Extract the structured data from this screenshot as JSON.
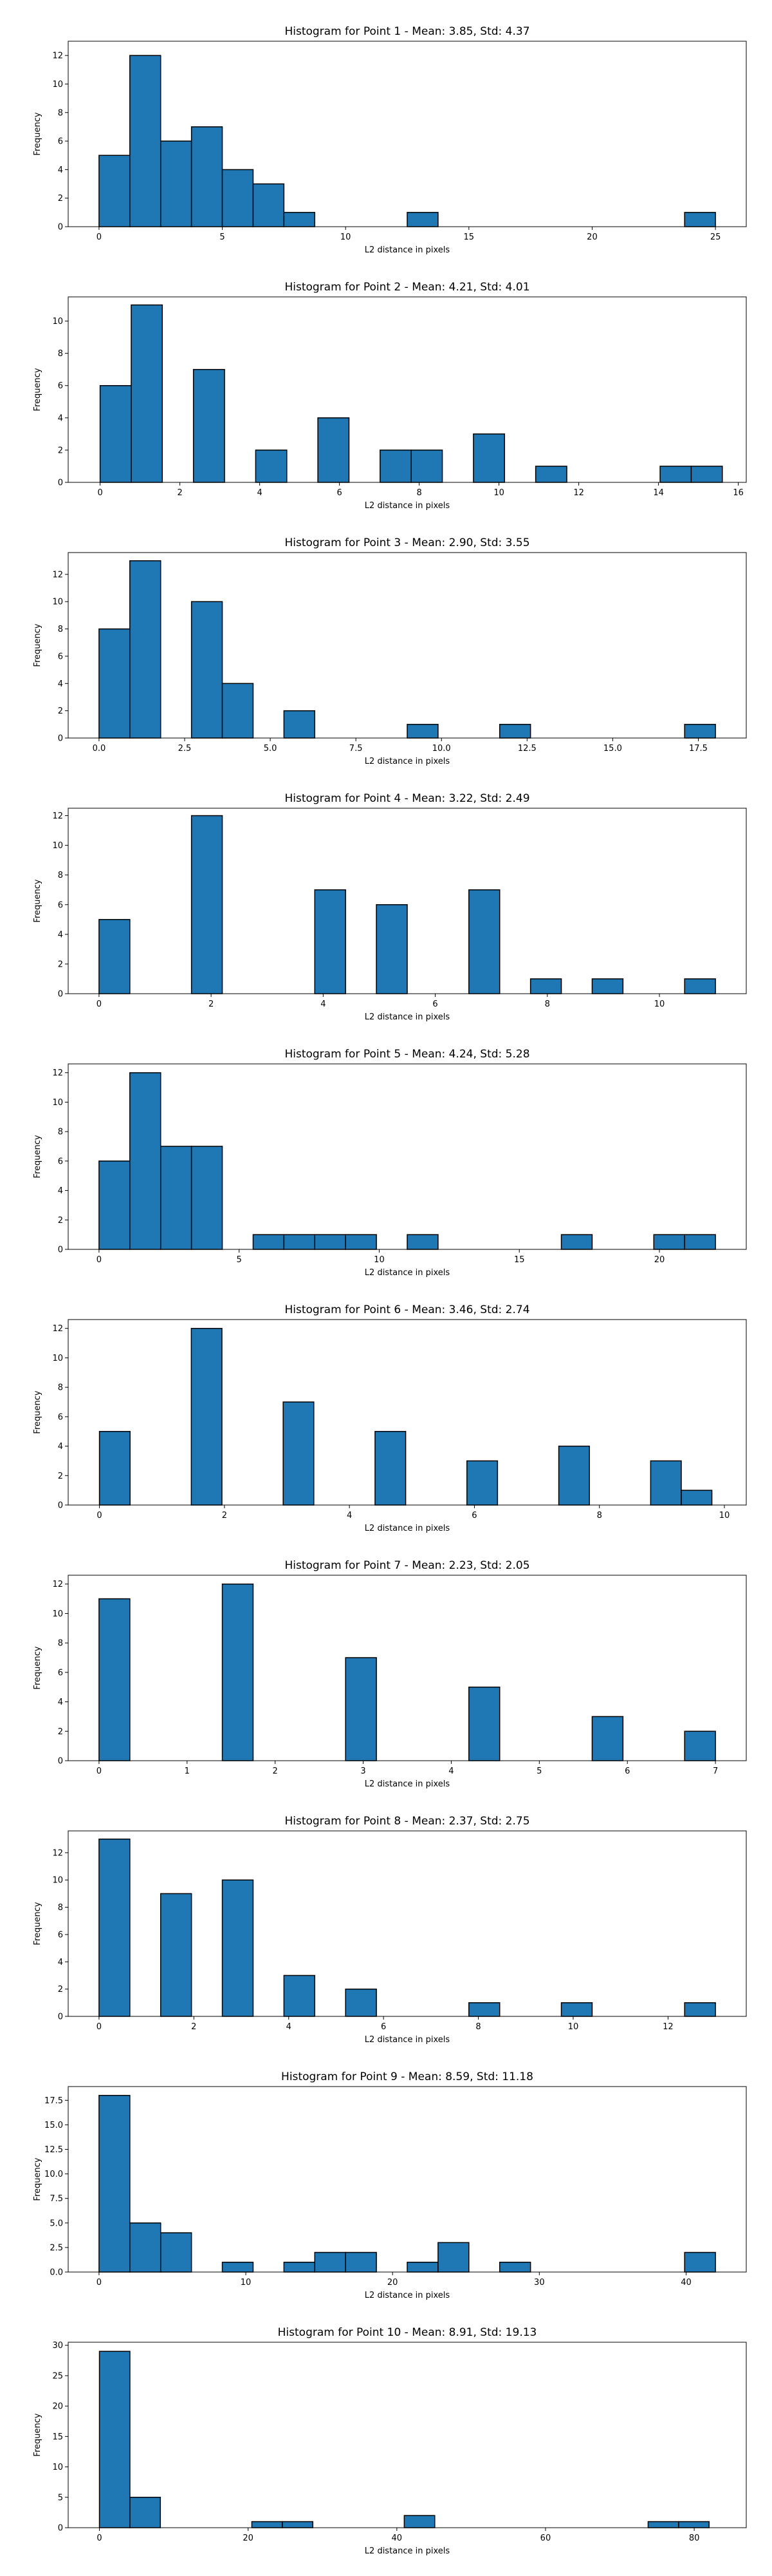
{
  "style": {
    "bar_color": "#1f77b4",
    "edge_color": "#000000"
  },
  "chart_data": [
    {
      "type": "bar",
      "title": "Histogram for Point 1 - Mean: 3.85, Std: 4.37",
      "xlabel": "L2 distance in pixels",
      "ylabel": "Frequency",
      "xlim": [
        -1.25,
        26.25
      ],
      "ylim": [
        0,
        13
      ],
      "xticks": [
        0,
        5,
        10,
        15,
        20,
        25
      ],
      "xtick_labels": [
        "0",
        "5",
        "10",
        "15",
        "20",
        "25"
      ],
      "yticks": [
        0,
        2,
        4,
        6,
        8,
        10,
        12
      ],
      "ytick_labels": [
        "0",
        "2",
        "4",
        "6",
        "8",
        "10",
        "12"
      ],
      "bin_start": 0,
      "bin_width": 1.25,
      "values": [
        5,
        12,
        6,
        7,
        4,
        3,
        1,
        0,
        0,
        0,
        1,
        0,
        0,
        0,
        0,
        0,
        0,
        0,
        0,
        1
      ]
    },
    {
      "type": "bar",
      "title": "Histogram for Point 2 - Mean: 4.21, Std: 4.01",
      "xlabel": "L2 distance in pixels",
      "ylabel": "Frequency",
      "xlim": [
        -0.8,
        16.2
      ],
      "ylim": [
        0,
        11.5
      ],
      "xticks": [
        0,
        2,
        4,
        6,
        8,
        10,
        12,
        14,
        16
      ],
      "xtick_labels": [
        "0",
        "2",
        "4",
        "6",
        "8",
        "10",
        "12",
        "14",
        "16"
      ],
      "yticks": [
        0,
        2,
        4,
        6,
        8,
        10
      ],
      "ytick_labels": [
        "0",
        "2",
        "4",
        "6",
        "8",
        "10"
      ],
      "bin_start": 0,
      "bin_width": 0.78,
      "values": [
        6,
        11,
        0,
        7,
        0,
        2,
        0,
        4,
        0,
        2,
        2,
        0,
        3,
        0,
        1,
        0,
        0,
        0,
        1,
        1
      ]
    },
    {
      "type": "bar",
      "title": "Histogram for Point 3 - Mean: 2.90, Std: 3.55",
      "xlabel": "L2 distance in pixels",
      "ylabel": "Frequency",
      "xlim": [
        -0.9,
        18.9
      ],
      "ylim": [
        0,
        13.6
      ],
      "xticks": [
        0,
        2.5,
        5,
        7.5,
        10,
        12.5,
        15,
        17.5
      ],
      "xtick_labels": [
        "0.0",
        "2.5",
        "5.0",
        "7.5",
        "10.0",
        "12.5",
        "15.0",
        "17.5"
      ],
      "yticks": [
        0,
        2,
        4,
        6,
        8,
        10,
        12
      ],
      "ytick_labels": [
        "0",
        "2",
        "4",
        "6",
        "8",
        "10",
        "12"
      ],
      "bin_start": 0,
      "bin_width": 0.9,
      "values": [
        8,
        13,
        0,
        10,
        4,
        0,
        2,
        0,
        0,
        0,
        1,
        0,
        0,
        1,
        0,
        0,
        0,
        0,
        0,
        1
      ]
    },
    {
      "type": "bar",
      "title": "Histogram for Point 4 - Mean: 3.22, Std: 2.49",
      "xlabel": "L2 distance in pixels",
      "ylabel": "Frequency",
      "xlim": [
        -0.55,
        11.55
      ],
      "ylim": [
        0,
        12.5
      ],
      "xticks": [
        0,
        2,
        4,
        6,
        8,
        10
      ],
      "xtick_labels": [
        "0",
        "2",
        "4",
        "6",
        "8",
        "10"
      ],
      "yticks": [
        0,
        2,
        4,
        6,
        8,
        10,
        12
      ],
      "ytick_labels": [
        "0",
        "2",
        "4",
        "6",
        "8",
        "10",
        "12"
      ],
      "bin_start": 0,
      "bin_width": 0.55,
      "values": [
        5,
        0,
        0,
        12,
        0,
        0,
        0,
        7,
        0,
        6,
        0,
        0,
        7,
        0,
        1,
        0,
        1,
        0,
        0,
        1
      ]
    },
    {
      "type": "bar",
      "title": "Histogram for Point 5 - Mean: 4.24, Std: 5.28",
      "xlabel": "L2 distance in pixels",
      "ylabel": "Frequency",
      "xlim": [
        -1.1,
        23.1
      ],
      "ylim": [
        0,
        12.6
      ],
      "xticks": [
        0,
        5,
        10,
        15,
        20
      ],
      "xtick_labels": [
        "0",
        "5",
        "10",
        "15",
        "20"
      ],
      "yticks": [
        0,
        2,
        4,
        6,
        8,
        10,
        12
      ],
      "ytick_labels": [
        "0",
        "2",
        "4",
        "6",
        "8",
        "10",
        "12"
      ],
      "bin_start": 0,
      "bin_width": 1.1,
      "values": [
        6,
        12,
        7,
        7,
        0,
        1,
        1,
        1,
        1,
        0,
        1,
        0,
        0,
        0,
        0,
        1,
        0,
        0,
        1,
        1
      ]
    },
    {
      "type": "bar",
      "title": "Histogram for Point 6 - Mean: 3.46, Std: 2.74",
      "xlabel": "L2 distance in pixels",
      "ylabel": "Frequency",
      "xlim": [
        -0.5,
        10.35
      ],
      "ylim": [
        0,
        12.6
      ],
      "xticks": [
        0,
        2,
        4,
        6,
        8,
        10
      ],
      "xtick_labels": [
        "0",
        "2",
        "4",
        "6",
        "8",
        "10"
      ],
      "yticks": [
        0,
        2,
        4,
        6,
        8,
        10,
        12
      ],
      "ytick_labels": [
        "0",
        "2",
        "4",
        "6",
        "8",
        "10",
        "12"
      ],
      "bin_start": 0,
      "bin_width": 0.49,
      "values": [
        5,
        0,
        0,
        12,
        0,
        0,
        7,
        0,
        0,
        5,
        0,
        0,
        3,
        0,
        0,
        4,
        0,
        0,
        3,
        1
      ]
    },
    {
      "type": "bar",
      "title": "Histogram for Point 7 - Mean: 2.23, Std: 2.05",
      "xlabel": "L2 distance in pixels",
      "ylabel": "Frequency",
      "xlim": [
        -0.35,
        7.35
      ],
      "ylim": [
        0,
        12.6
      ],
      "xticks": [
        0,
        1,
        2,
        3,
        4,
        5,
        6,
        7
      ],
      "xtick_labels": [
        "0",
        "1",
        "2",
        "3",
        "4",
        "5",
        "6",
        "7"
      ],
      "yticks": [
        0,
        2,
        4,
        6,
        8,
        10,
        12
      ],
      "ytick_labels": [
        "0",
        "2",
        "4",
        "6",
        "8",
        "10",
        "12"
      ],
      "bin_start": 0,
      "bin_width": 0.35,
      "values": [
        11,
        0,
        0,
        0,
        12,
        0,
        0,
        0,
        7,
        0,
        0,
        0,
        5,
        0,
        0,
        0,
        3,
        0,
        0,
        2
      ]
    },
    {
      "type": "bar",
      "title": "Histogram for Point 8 - Mean: 2.37, Std: 2.75",
      "xlabel": "L2 distance in pixels",
      "ylabel": "Frequency",
      "xlim": [
        -0.65,
        13.65
      ],
      "ylim": [
        0,
        13.6
      ],
      "xticks": [
        0,
        2,
        4,
        6,
        8,
        10,
        12
      ],
      "xtick_labels": [
        "0",
        "2",
        "4",
        "6",
        "8",
        "10",
        "12"
      ],
      "yticks": [
        0,
        2,
        4,
        6,
        8,
        10,
        12
      ],
      "ytick_labels": [
        "0",
        "2",
        "4",
        "6",
        "8",
        "10",
        "12"
      ],
      "bin_start": 0,
      "bin_width": 0.65,
      "values": [
        13,
        0,
        9,
        0,
        10,
        0,
        3,
        0,
        2,
        0,
        0,
        0,
        1,
        0,
        0,
        1,
        0,
        0,
        0,
        1
      ]
    },
    {
      "type": "bar",
      "title": "Histogram for Point 9 - Mean: 8.59, Std: 11.18",
      "xlabel": "L2 distance in pixels",
      "ylabel": "Frequency",
      "xlim": [
        -2.1,
        44.1
      ],
      "ylim": [
        0,
        18.9
      ],
      "xticks": [
        0,
        10,
        20,
        30,
        40
      ],
      "xtick_labels": [
        "0",
        "10",
        "20",
        "30",
        "40"
      ],
      "yticks": [
        0,
        2.5,
        5,
        7.5,
        10,
        12.5,
        15,
        17.5
      ],
      "ytick_labels": [
        "0.0",
        "2.5",
        "5.0",
        "7.5",
        "10.0",
        "12.5",
        "15.0",
        "17.5"
      ],
      "bin_start": 0,
      "bin_width": 2.1,
      "values": [
        18,
        5,
        4,
        0,
        1,
        0,
        1,
        2,
        2,
        0,
        1,
        3,
        0,
        1,
        0,
        0,
        0,
        0,
        0,
        2
      ]
    },
    {
      "type": "bar",
      "title": "Histogram for Point 10 - Mean: 8.91, Std: 19.13",
      "xlabel": "L2 distance in pixels",
      "ylabel": "Frequency",
      "xlim": [
        -4.2,
        87.0
      ],
      "ylim": [
        0,
        30.5
      ],
      "xticks": [
        0,
        20,
        40,
        60,
        80
      ],
      "xtick_labels": [
        "0",
        "20",
        "40",
        "60",
        "80"
      ],
      "yticks": [
        0,
        5,
        10,
        15,
        20,
        25,
        30
      ],
      "ytick_labels": [
        "0",
        "5",
        "10",
        "15",
        "20",
        "25",
        "30"
      ],
      "bin_start": 0,
      "bin_width": 4.1,
      "values": [
        29,
        5,
        0,
        0,
        0,
        1,
        1,
        0,
        0,
        0,
        2,
        0,
        0,
        0,
        0,
        0,
        0,
        0,
        1,
        1
      ]
    }
  ]
}
